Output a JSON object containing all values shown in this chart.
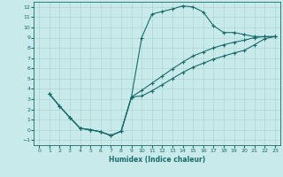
{
  "xlabel": "Humidex (Indice chaleur)",
  "bg_color": "#c8eaea",
  "grid_color": "#a8d0d0",
  "line_color": "#1a6b6b",
  "xlim": [
    -0.5,
    23.5
  ],
  "ylim": [
    -1.5,
    12.5
  ],
  "xticks": [
    0,
    1,
    2,
    3,
    4,
    5,
    6,
    7,
    8,
    9,
    10,
    11,
    12,
    13,
    14,
    15,
    16,
    17,
    18,
    19,
    20,
    21,
    22,
    23
  ],
  "yticks": [
    -1,
    0,
    1,
    2,
    3,
    4,
    5,
    6,
    7,
    8,
    9,
    10,
    11,
    12
  ],
  "line1_x": [
    1,
    2,
    3,
    4,
    5,
    6,
    7,
    8,
    9,
    10,
    11,
    12,
    13,
    14,
    15,
    16,
    17,
    18,
    19,
    20,
    21,
    22,
    23
  ],
  "line1_y": [
    3.5,
    2.3,
    1.2,
    0.15,
    0.0,
    -0.2,
    -0.55,
    -0.15,
    3.2,
    9.0,
    11.3,
    11.55,
    11.8,
    12.1,
    12.0,
    11.5,
    10.15,
    9.5,
    9.5,
    9.3,
    9.1,
    9.1,
    9.1
  ],
  "line2_x": [
    1,
    2,
    3,
    4,
    5,
    6,
    7,
    8,
    9,
    10,
    11,
    12,
    13,
    14,
    15,
    16,
    17,
    18,
    19,
    20,
    21,
    22,
    23
  ],
  "line2_y": [
    3.5,
    2.3,
    1.2,
    0.15,
    0.0,
    -0.2,
    -0.55,
    -0.15,
    3.2,
    3.85,
    4.55,
    5.25,
    5.95,
    6.6,
    7.2,
    7.6,
    8.0,
    8.3,
    8.55,
    8.75,
    9.0,
    9.1,
    9.1
  ],
  "line3_x": [
    1,
    2,
    3,
    4,
    5,
    6,
    7,
    8,
    9,
    10,
    11,
    12,
    13,
    14,
    15,
    16,
    17,
    18,
    19,
    20,
    21,
    22,
    23
  ],
  "line3_y": [
    3.5,
    2.3,
    1.2,
    0.15,
    0.0,
    -0.2,
    -0.55,
    -0.15,
    3.2,
    3.3,
    3.8,
    4.4,
    5.0,
    5.6,
    6.1,
    6.5,
    6.9,
    7.2,
    7.5,
    7.75,
    8.3,
    8.9,
    9.1
  ]
}
